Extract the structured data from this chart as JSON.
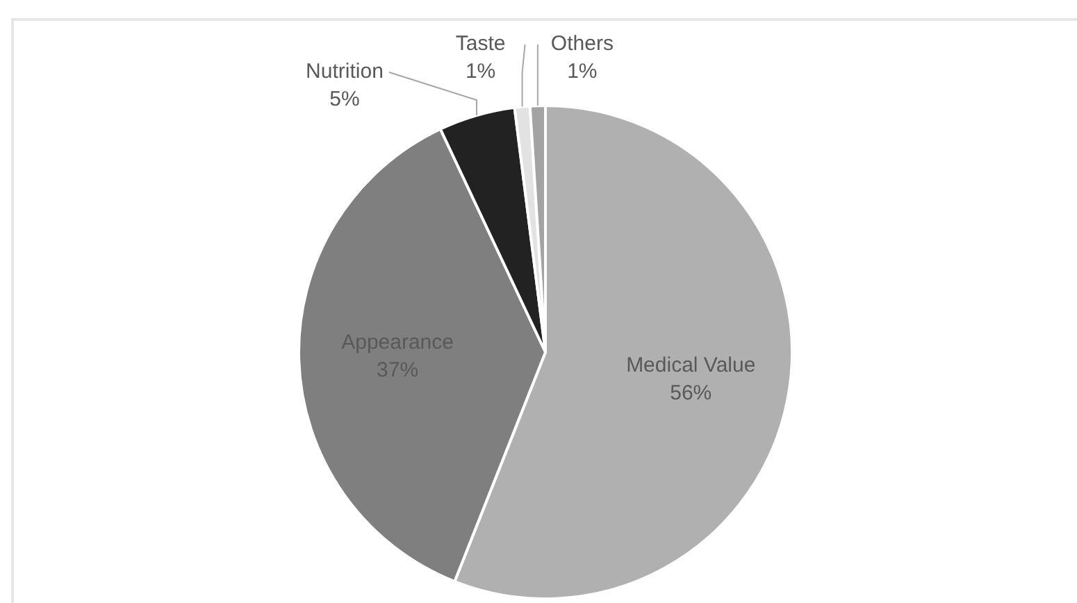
{
  "chart_data": {
    "type": "pie",
    "categories": [
      "Medical Value",
      "Appearance",
      "Nutrition",
      "Taste",
      "Others"
    ],
    "values": [
      56,
      37,
      5,
      1,
      1
    ],
    "value_labels": [
      "56%",
      "37%",
      "5%",
      "1%",
      "1%"
    ],
    "colors": [
      "#b0b0b0",
      "#7f7f7f",
      "#222222",
      "#e2e2e2",
      "#a3a3a3"
    ],
    "legend": false
  }
}
